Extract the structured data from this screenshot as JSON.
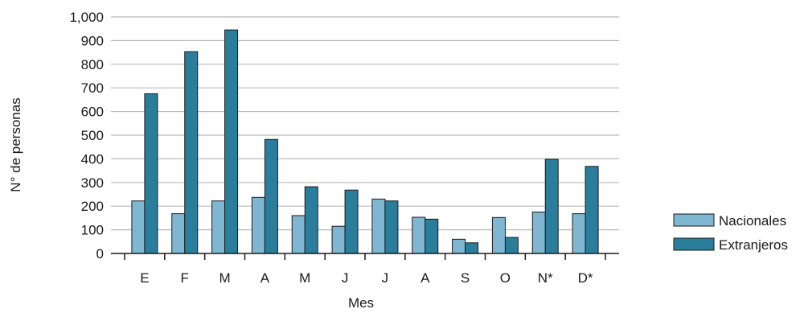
{
  "chart_data": {
    "type": "bar",
    "xlabel": "Mes",
    "ylabel": "N° de personas",
    "ylim": [
      0,
      1000
    ],
    "yticks": [
      "0",
      "100",
      "200",
      "300",
      "400",
      "500",
      "600",
      "700",
      "800",
      "900",
      "1,000"
    ],
    "grid": true,
    "legend_position": "right",
    "categories": [
      "E",
      "F",
      "M",
      "A",
      "M",
      "J",
      "J",
      "A",
      "S",
      "O",
      "N*",
      "D*"
    ],
    "series": [
      {
        "name": "Nacionales",
        "color": "#7fb6d2",
        "values": [
          222,
          168,
          222,
          237,
          160,
          115,
          230,
          153,
          60,
          152,
          175,
          168
        ]
      },
      {
        "name": "Extranjeros",
        "color": "#2a7e9c",
        "values": [
          675,
          853,
          945,
          482,
          282,
          268,
          222,
          145,
          45,
          68,
          398,
          368
        ]
      }
    ]
  }
}
